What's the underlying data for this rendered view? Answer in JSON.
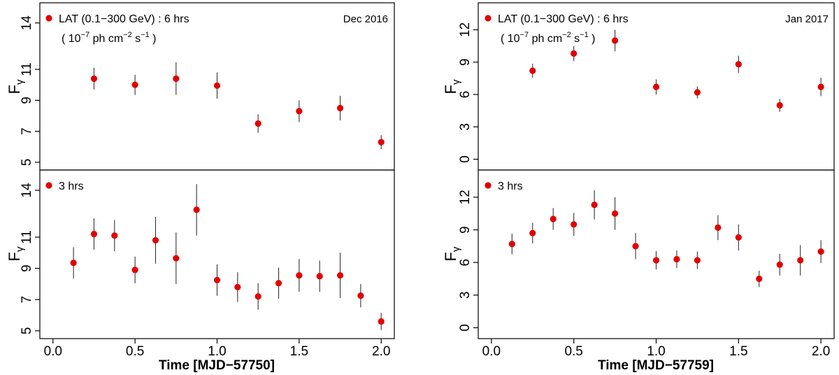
{
  "colors": {
    "marker": "#e00000",
    "errorbar": "#333333",
    "axis": "#000000"
  },
  "chart_data": [
    {
      "type": "scatter",
      "title": "Dec 2016",
      "xlabel": "Time [MJD−57750]",
      "ylabel": "F",
      "ylabel_sub": "γ",
      "legend": "LAT (0.1−300 GeV) : 6 hrs",
      "units": {
        "prefix": "( 10",
        "exp1": "−7",
        "mid": " ph cm",
        "exp2": "−2",
        "mid2": " s",
        "exp3": "−1",
        "suffix": " )"
      },
      "xlim": [
        -0.08,
        2.08
      ],
      "ylim": [
        4.5,
        15.3
      ],
      "yticks": [
        5,
        7,
        9,
        11,
        14
      ],
      "xticks": [
        0.0,
        0.5,
        1.0,
        1.5,
        2.0
      ],
      "xtick_labels": [
        "0.0",
        "0.5",
        "1.0",
        "1.5",
        "2.0"
      ],
      "x": [
        0.25,
        0.5,
        0.75,
        1.0,
        1.25,
        1.5,
        1.75,
        2.0
      ],
      "y": [
        10.4,
        10.0,
        10.4,
        9.95,
        7.5,
        8.3,
        8.5,
        6.3
      ],
      "err": [
        0.7,
        0.65,
        1.05,
        0.85,
        0.6,
        0.7,
        0.8,
        0.45
      ]
    },
    {
      "type": "scatter",
      "title": "",
      "xlabel": "Time [MJD−57750]",
      "ylabel": "F",
      "ylabel_sub": "γ",
      "legend": "3 hrs",
      "xlim": [
        -0.08,
        2.08
      ],
      "ylim": [
        4.5,
        15.3
      ],
      "yticks": [
        5,
        7,
        9,
        11,
        14
      ],
      "xticks": [
        0.0,
        0.5,
        1.0,
        1.5,
        2.0
      ],
      "xtick_labels": [
        "0.0",
        "0.5",
        "1.0",
        "1.5",
        "2.0"
      ],
      "x": [
        0.125,
        0.25,
        0.375,
        0.5,
        0.625,
        0.75,
        0.875,
        1.0,
        1.125,
        1.25,
        1.375,
        1.5,
        1.625,
        1.75,
        1.875,
        2.0
      ],
      "y": [
        9.35,
        11.2,
        11.1,
        8.9,
        10.8,
        9.65,
        12.75,
        8.25,
        7.8,
        7.2,
        8.05,
        8.55,
        8.5,
        8.55,
        7.25,
        5.6
      ],
      "err": [
        1.0,
        1.0,
        1.0,
        0.85,
        1.5,
        1.65,
        1.65,
        1.0,
        0.95,
        0.85,
        1.0,
        1.05,
        1.0,
        1.45,
        0.75,
        0.55
      ]
    },
    {
      "type": "scatter",
      "title": "Jan 2017",
      "xlabel": "Time [MJD−57759]",
      "ylabel": "F",
      "ylabel_sub": "γ",
      "legend": "LAT (0.1−300 GeV) : 6 hrs",
      "units": {
        "prefix": "( 10",
        "exp1": "−7",
        "mid": " ph cm",
        "exp2": "−2",
        "mid2": " s",
        "exp3": "−1",
        "suffix": " )"
      },
      "xlim": [
        -0.08,
        2.08
      ],
      "ylim": [
        -1.0,
        14.5
      ],
      "yticks": [
        0,
        3,
        6,
        9,
        12
      ],
      "xticks": [
        0.0,
        0.5,
        1.0,
        1.5,
        2.0
      ],
      "xtick_labels": [
        "0.0",
        "0.5",
        "1.0",
        "1.5",
        "2.0"
      ],
      "x": [
        0.25,
        0.5,
        0.75,
        1.0,
        1.25,
        1.5,
        1.75,
        2.0
      ],
      "y": [
        8.2,
        9.8,
        11.0,
        6.7,
        6.2,
        8.8,
        5.0,
        6.7
      ],
      "err": [
        0.65,
        0.7,
        1.0,
        0.7,
        0.55,
        0.8,
        0.6,
        0.85
      ]
    },
    {
      "type": "scatter",
      "title": "",
      "xlabel": "Time [MJD−57759]",
      "ylabel": "F",
      "ylabel_sub": "γ",
      "legend": "3 hrs",
      "xlim": [
        -0.08,
        2.08
      ],
      "ylim": [
        -1.0,
        14.5
      ],
      "yticks": [
        0,
        3,
        6,
        9,
        12
      ],
      "xticks": [
        0.0,
        0.5,
        1.0,
        1.5,
        2.0
      ],
      "xtick_labels": [
        "0.0",
        "0.5",
        "1.0",
        "1.5",
        "2.0"
      ],
      "x": [
        0.125,
        0.25,
        0.375,
        0.5,
        0.625,
        0.75,
        0.875,
        1.0,
        1.125,
        1.25,
        1.375,
        1.5,
        1.625,
        1.75,
        1.875,
        2.0
      ],
      "y": [
        7.7,
        8.7,
        10.0,
        9.5,
        11.3,
        10.5,
        7.5,
        6.2,
        6.3,
        6.2,
        9.2,
        8.3,
        4.5,
        5.8,
        6.2,
        7.0
      ],
      "err": [
        0.95,
        0.95,
        1.0,
        1.05,
        1.35,
        1.5,
        1.2,
        0.85,
        0.8,
        0.8,
        1.15,
        1.2,
        0.75,
        1.0,
        1.4,
        1.05
      ]
    }
  ]
}
